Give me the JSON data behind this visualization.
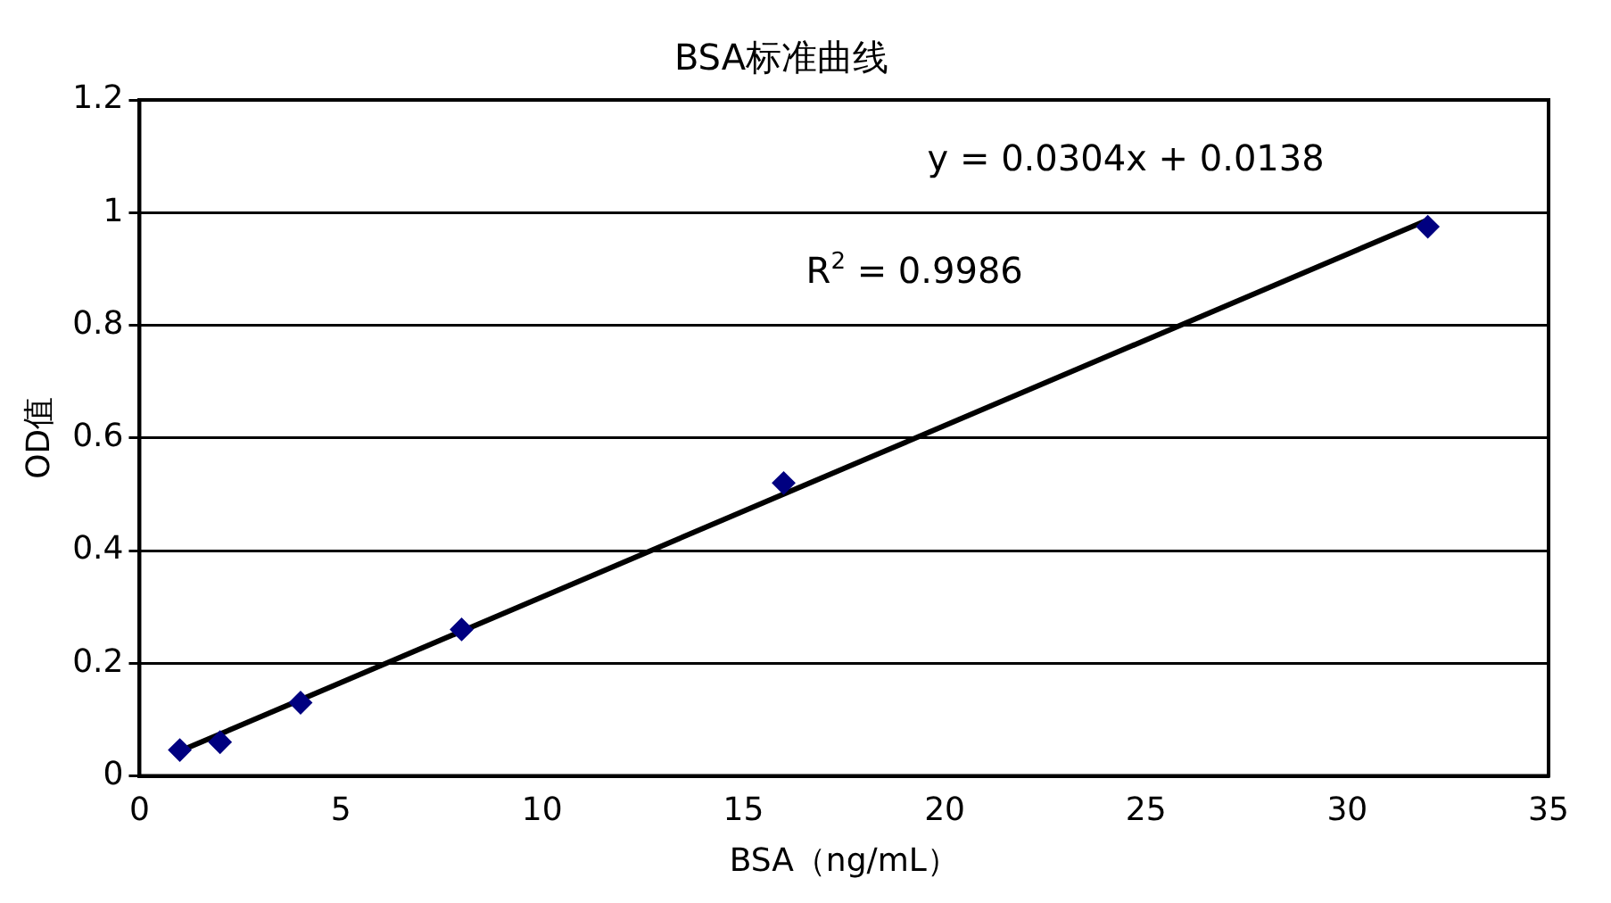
{
  "chart_data": {
    "type": "scatter",
    "title": "BSA标准曲线",
    "xlabel": "BSA（ng/mL）",
    "ylabel": "OD值",
    "x": [
      1,
      2,
      4,
      8,
      16,
      32
    ],
    "series": [
      {
        "type": "scatter",
        "color": "#000080",
        "marker": "diamond",
        "values": [
          0.046,
          0.06,
          0.13,
          0.26,
          0.52,
          0.975
        ]
      },
      {
        "type": "line",
        "color": "#000000",
        "marker": "none",
        "x": [
          1,
          32
        ],
        "values": [
          0.044,
          0.987
        ]
      }
    ],
    "xlim": [
      0,
      35
    ],
    "xticks": [
      0,
      5,
      10,
      15,
      20,
      25,
      30,
      35
    ],
    "ylim": [
      0,
      1.2
    ],
    "yticks": [
      0,
      0.2,
      0.4,
      0.6,
      0.8,
      1,
      1.2
    ],
    "grid": "y",
    "legend": false,
    "annotations": [
      "y = 0.0304x + 0.0138",
      "R$^{2}$ = 0.9986"
    ]
  }
}
